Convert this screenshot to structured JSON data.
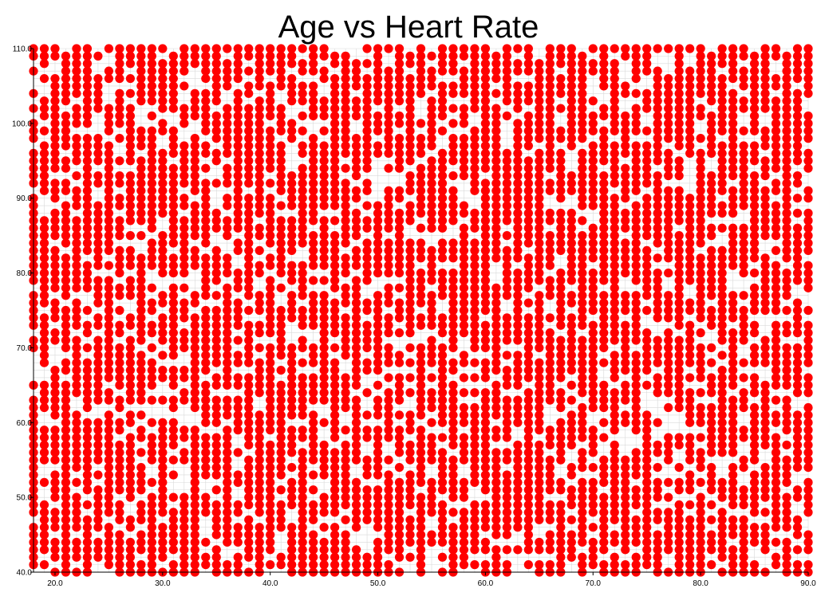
{
  "chart_data": {
    "type": "scatter",
    "title": "Age vs Heart Rate",
    "xlabel": "",
    "ylabel": "",
    "xlim": [
      18,
      90
    ],
    "ylim": [
      40,
      110
    ],
    "x_ticks": [
      "20.0",
      "30.0",
      "40.0",
      "50.0",
      "60.0",
      "70.0",
      "80.0",
      "90.0"
    ],
    "y_ticks": [
      "40.0",
      "50.0",
      "60.0",
      "70.0",
      "80.0",
      "90.0",
      "100.0",
      "110.0"
    ],
    "grid": true,
    "marker_color": "#ff0000",
    "x_values": [
      18,
      19,
      20,
      21,
      22,
      23,
      24,
      25,
      26,
      27,
      28,
      29,
      30,
      31,
      32,
      33,
      34,
      35,
      36,
      37,
      38,
      39,
      40,
      41,
      42,
      43,
      44,
      45,
      46,
      47,
      48,
      49,
      50,
      51,
      52,
      53,
      54,
      55,
      56,
      57,
      58,
      59,
      60,
      61,
      62,
      63,
      64,
      65,
      66,
      67,
      68,
      69,
      70,
      71,
      72,
      73,
      74,
      75,
      76,
      77,
      78,
      79,
      80,
      81,
      82,
      83,
      84,
      85,
      86,
      87,
      88,
      89,
      90
    ],
    "y_range": [
      40,
      110
    ],
    "point_density": 0.8
  }
}
